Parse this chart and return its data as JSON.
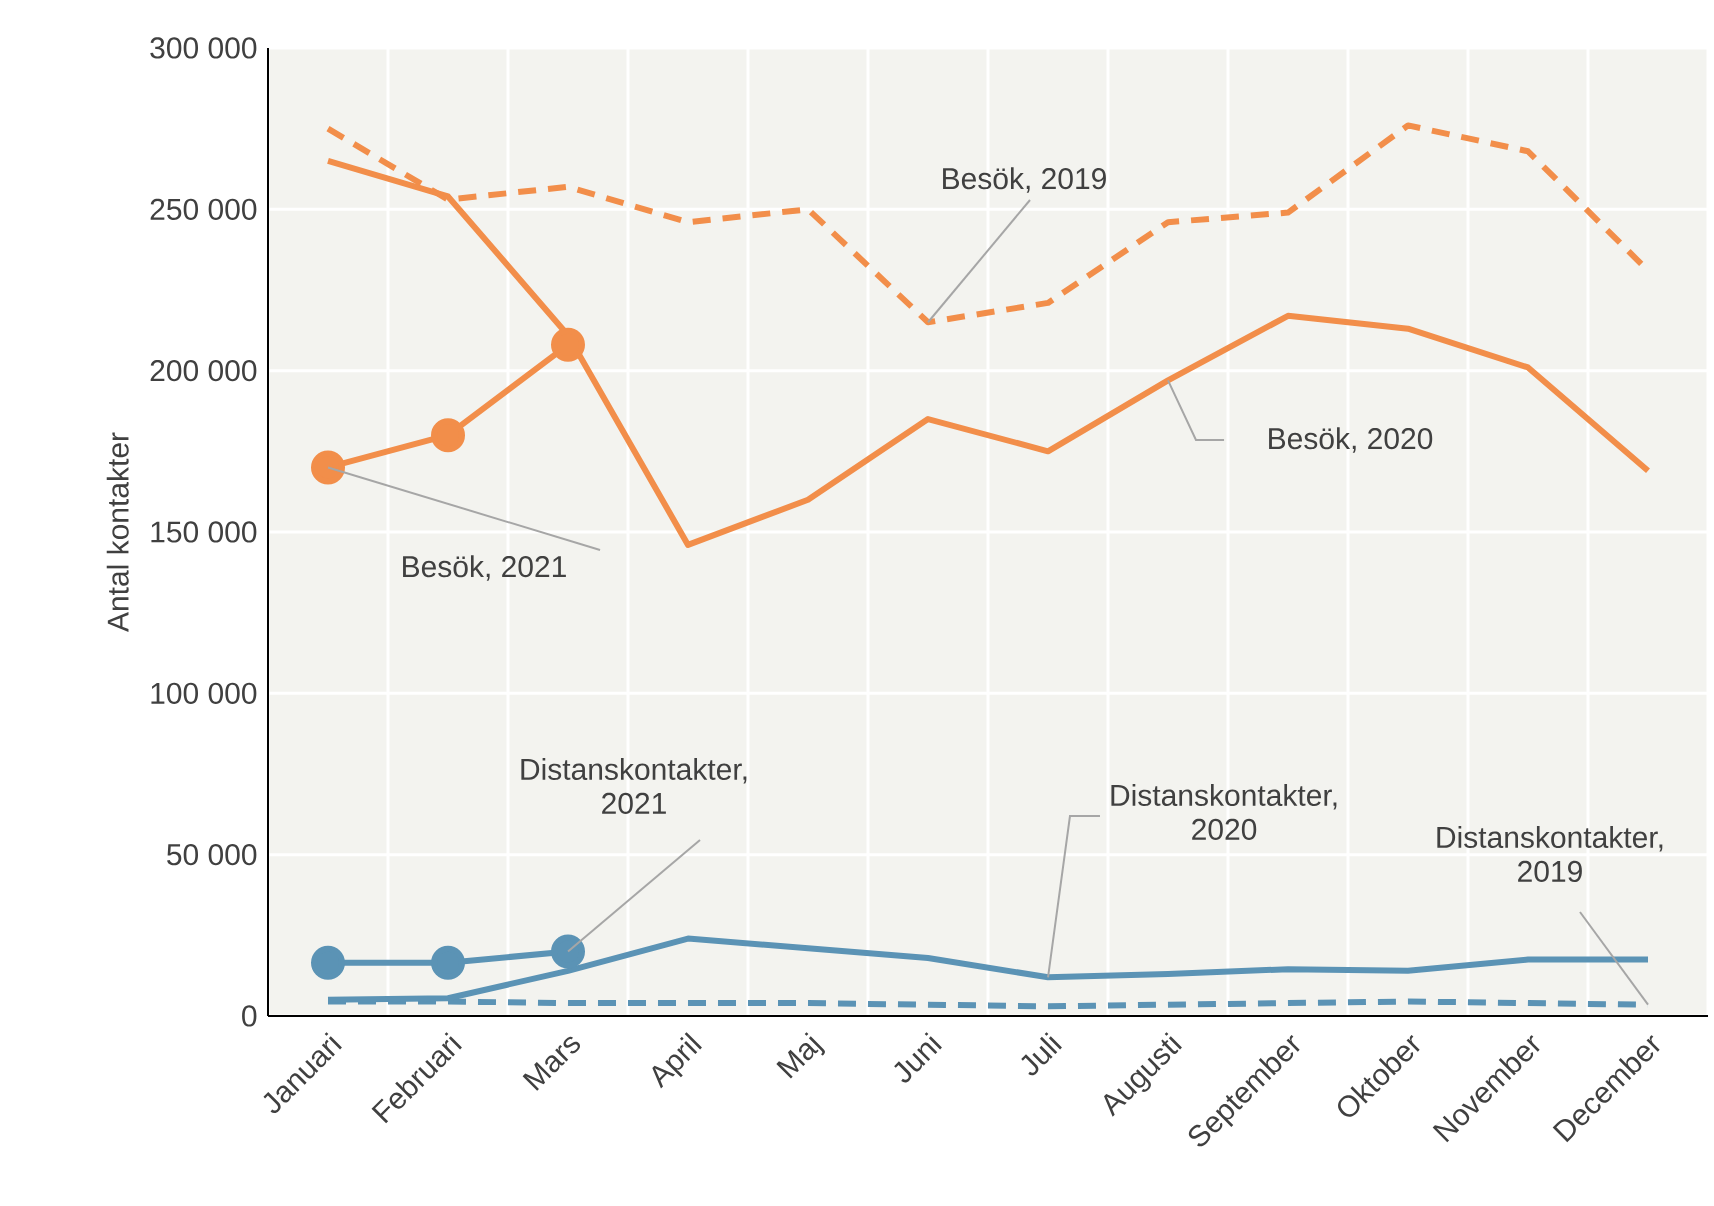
{
  "chart_data": {
    "type": "line",
    "ylabel": "Antal kontakter",
    "categories": [
      "Januari",
      "Februari",
      "Mars",
      "April",
      "Maj",
      "Juni",
      "Juli",
      "Augusti",
      "September",
      "Oktober",
      "November",
      "December"
    ],
    "ylim": [
      0,
      300000
    ],
    "yticks": [
      {
        "value": 0,
        "label": "0"
      },
      {
        "value": 50000,
        "label": "50 000"
      },
      {
        "value": 100000,
        "label": "100 000"
      },
      {
        "value": 150000,
        "label": "150 000"
      },
      {
        "value": 200000,
        "label": "200 000"
      },
      {
        "value": 250000,
        "label": "250 000"
      },
      {
        "value": 300000,
        "label": "300 000"
      }
    ],
    "grid": true,
    "series": [
      {
        "name": "Besök, 2019",
        "color": "#f28e4a",
        "line_style": "dashed",
        "marker": "none",
        "values": [
          275000,
          253000,
          257000,
          246000,
          250000,
          215000,
          221000,
          246000,
          249000,
          276000,
          268000,
          231000
        ]
      },
      {
        "name": "Besök, 2020",
        "color": "#f28e4a",
        "line_style": "solid",
        "marker": "none",
        "values": [
          265000,
          254000,
          211000,
          146000,
          160000,
          185000,
          175000,
          197000,
          217000,
          213000,
          201000,
          169000
        ]
      },
      {
        "name": "Besök, 2021",
        "color": "#f28e4a",
        "line_style": "solid",
        "marker": "circle",
        "values": [
          170000,
          180000,
          208000,
          null,
          null,
          null,
          null,
          null,
          null,
          null,
          null,
          null
        ]
      },
      {
        "name": "Distanskontakter, 2019",
        "color": "#5b93b5",
        "line_style": "dashed",
        "marker": "none",
        "values": [
          4500,
          4500,
          4000,
          4000,
          4000,
          3500,
          3000,
          3500,
          4000,
          4500,
          4000,
          3500
        ]
      },
      {
        "name": "Distanskontakter, 2020",
        "color": "#5b93b5",
        "line_style": "solid",
        "marker": "none",
        "values": [
          5000,
          5500,
          14000,
          24000,
          21000,
          18000,
          12000,
          13000,
          14500,
          14000,
          17500,
          17500
        ]
      },
      {
        "name": "Distanskontakter, 2021",
        "color": "#5b93b5",
        "line_style": "solid",
        "marker": "circle",
        "values": [
          16500,
          16500,
          20000,
          null,
          null,
          null,
          null,
          null,
          null,
          null,
          null,
          null
        ]
      }
    ]
  }
}
